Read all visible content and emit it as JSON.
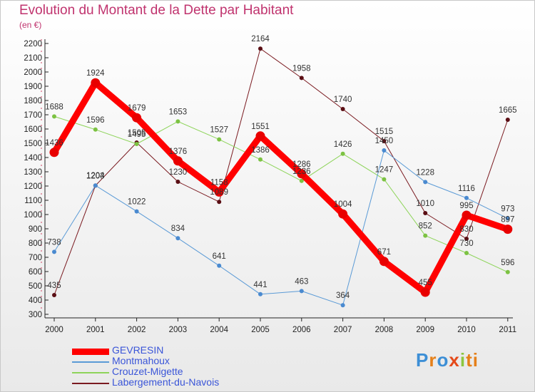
{
  "header": {
    "title": "Evolution du Montant de la Dette par Habitant",
    "subtitle": "(en €)"
  },
  "logo": {
    "text": "Proxiti"
  },
  "chart_data": {
    "type": "line",
    "x": [
      "2000",
      "2001",
      "2002",
      "2003",
      "2004",
      "2005",
      "2006",
      "2007",
      "2008",
      "2009",
      "2010",
      "2011"
    ],
    "y_ticks": [
      300,
      400,
      500,
      600,
      700,
      800,
      900,
      1000,
      1100,
      1200,
      1300,
      1400,
      1500,
      1600,
      1700,
      1800,
      1900,
      2000,
      2100,
      2200
    ],
    "ylim": [
      300,
      2200
    ],
    "grid": false,
    "legend_position": "bottom-left",
    "series": [
      {
        "name": "Labergement-du-Navois",
        "color": "#7a1a20",
        "marker": "#5a0e14",
        "width": 1,
        "r": 3,
        "values": [
          435,
          1203,
          1505,
          1230,
          1089,
          2164,
          1958,
          1740,
          1515,
          1010,
          830,
          1665
        ]
      },
      {
        "name": "Crouzet-Migette",
        "color": "#8ed45a",
        "marker": "#7cc242",
        "width": 1,
        "r": 3,
        "values": [
          1688,
          1596,
          1495,
          1653,
          1527,
          1386,
          1236,
          1426,
          1247,
          852,
          730,
          596
        ]
      },
      {
        "name": "Montmahoux",
        "color": "#5a9ad6",
        "marker": "#4a8ad0",
        "width": 1,
        "r": 3,
        "values": [
          738,
          1204,
          1022,
          834,
          641,
          441,
          463,
          364,
          1450,
          1228,
          1116,
          973
        ]
      },
      {
        "name": "GEVRESIN",
        "color": "#ff0000",
        "marker": "#e80000",
        "width": 9,
        "r": 6.5,
        "values": [
          1436,
          1924,
          1679,
          1376,
          1158,
          1551,
          1286,
          1004,
          671,
          455,
          995,
          897
        ]
      }
    ]
  }
}
